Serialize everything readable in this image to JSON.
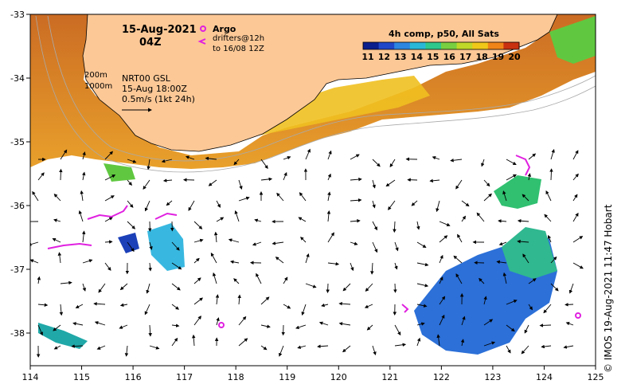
{
  "title": {
    "date": "15-Aug-2021",
    "time": "04Z"
  },
  "legend_argo": {
    "argo_label": "Argo",
    "drifters_label": "drifters@12h",
    "drifters_range": "to 16/08 12Z"
  },
  "contours": {
    "depth_a": "200m",
    "depth_b": "1000m"
  },
  "current_info": {
    "product": "NRT00 GSL",
    "timestamp": "15-Aug 18:00Z",
    "scale": "0.5m/s (1kt 24h)"
  },
  "colorbar": {
    "title": "4h comp, p50, All Sats",
    "ticks": [
      "11",
      "12",
      "13",
      "14",
      "15",
      "16",
      "17",
      "18",
      "19",
      "20"
    ],
    "min": 11,
    "max": 20,
    "colors": [
      "#0a1e8c",
      "#1f48c8",
      "#2d86e0",
      "#2ab8d8",
      "#2fc88c",
      "#78d040",
      "#c0d828",
      "#f0c818",
      "#f08418",
      "#c83010"
    ]
  },
  "axes": {
    "x_ticks": [
      "114",
      "115",
      "116",
      "117",
      "118",
      "119",
      "120",
      "121",
      "122",
      "123",
      "124",
      "125"
    ],
    "y_ticks": [
      "-33",
      "-34",
      "-35",
      "-36",
      "-37",
      "-38"
    ],
    "x_range": [
      114,
      125
    ],
    "y_range": [
      -38.5,
      -33
    ]
  },
  "credit": "© IMOS 19-Aug-2021 11:47 Hobart",
  "colors": {
    "land": "#fcc896",
    "argo": "#e020e0",
    "drifter": "#e020e0"
  }
}
